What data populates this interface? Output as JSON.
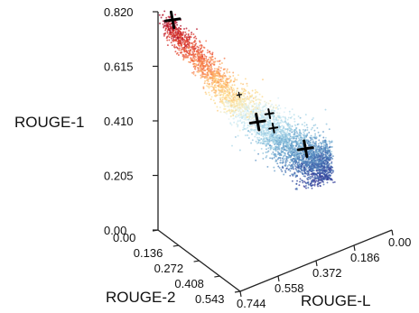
{
  "chart_data": {
    "type": "scatter",
    "projection": "3d",
    "axes": {
      "x": {
        "label": "ROUGE-L",
        "ticks": [
          "0.00",
          "0.186",
          "0.372",
          "0.558",
          "0.744"
        ],
        "range": [
          0.0,
          0.744
        ]
      },
      "y": {
        "label": "ROUGE-2",
        "ticks": [
          "0.00",
          "0.136",
          "0.272",
          "0.408",
          "0.543"
        ],
        "range": [
          0.0,
          0.543
        ]
      },
      "z": {
        "label": "ROUGE-1",
        "ticks": [
          "0.00",
          "0.205",
          "0.410",
          "0.615",
          "0.820"
        ],
        "range": [
          0.0,
          0.82
        ]
      }
    },
    "colormap": [
      "#313695",
      "#4575b4",
      "#74add1",
      "#abd9e9",
      "#e0f3f8",
      "#fee090",
      "#fdae61",
      "#f46d43",
      "#d73027",
      "#a50026"
    ],
    "point_cloud": {
      "count": 4000,
      "trend": [
        {
          "rougeL": 0.744,
          "rouge2": 0.05,
          "rouge1": 0.8
        },
        {
          "rougeL": 0.6,
          "rouge2": 0.08,
          "rouge1": 0.63
        },
        {
          "rougeL": 0.45,
          "rouge2": 0.1,
          "rouge1": 0.44
        },
        {
          "rougeL": 0.3,
          "rouge2": 0.11,
          "rouge1": 0.3
        },
        {
          "rougeL": 0.19,
          "rouge2": 0.11,
          "rouge1": 0.2
        },
        {
          "rougeL": 0.08,
          "rouge2": 0.12,
          "rouge1": 0.11
        },
        {
          "rougeL": 0.0,
          "rouge2": 0.12,
          "rouge1": 0.05
        }
      ]
    },
    "highlighted_points": [
      {
        "rougeL": 0.71,
        "rouge2": 0.05,
        "rouge1": 0.8,
        "size": "large"
      },
      {
        "rougeL": 0.33,
        "rouge2": 0.1,
        "rouge1": 0.32,
        "size": "large"
      },
      {
        "rougeL": 0.28,
        "rouge2": 0.11,
        "rouge1": 0.34,
        "size": "small"
      },
      {
        "rougeL": 0.26,
        "rouge2": 0.11,
        "rouge1": 0.28,
        "size": "small"
      },
      {
        "rougeL": 0.11,
        "rouge2": 0.12,
        "rouge1": 0.16,
        "size": "large"
      },
      {
        "rougeL": 0.42,
        "rouge2": 0.1,
        "rouge1": 0.45,
        "size": "tiny"
      }
    ]
  }
}
